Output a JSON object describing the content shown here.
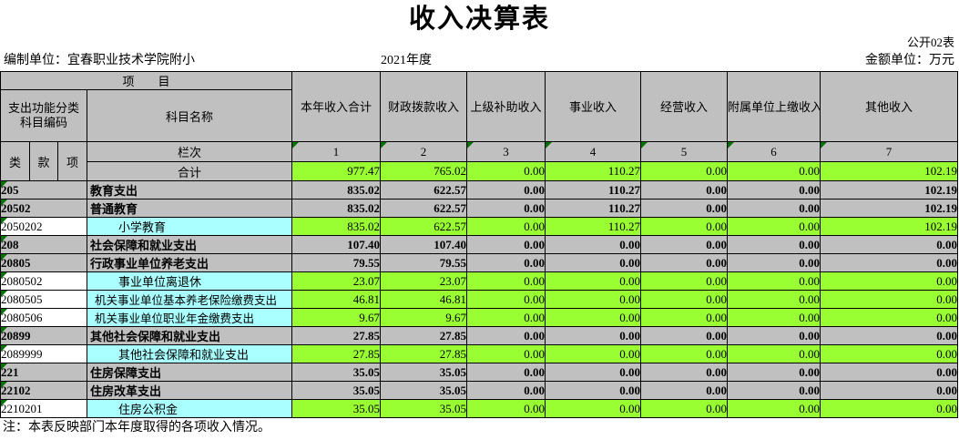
{
  "title": "收入决算表",
  "header": {
    "sheet_no": "公开02表",
    "prepare_unit": "编制单位：宜春职业技术学院附小",
    "year": "2021年度",
    "amount_unit": "金额单位：万元"
  },
  "table": {
    "project_header": "项　　目",
    "code_header_line1": "支出功能分类",
    "code_header_line2": "科目编码",
    "name_header": "科目名称",
    "col_headers": [
      "本年收入合计",
      "财政拨款收入",
      "上级补助收入",
      "事业收入",
      "经营收入",
      "附属单位上缴收入",
      "其他收入"
    ],
    "sub_headers": {
      "lei": "类",
      "kuan": "款",
      "xiang": "项",
      "lanci": "栏次",
      "heji": "合计"
    },
    "col_numbers": [
      "1",
      "2",
      "3",
      "4",
      "5",
      "6",
      "7"
    ],
    "total_values": [
      "977.47",
      "765.02",
      "0.00",
      "110.27",
      "0.00",
      "0.00",
      "102.19"
    ],
    "rows": [
      {
        "code": "205",
        "name": "教育支出",
        "level": "summary",
        "values": [
          "835.02",
          "622.57",
          "0.00",
          "110.27",
          "0.00",
          "0.00",
          "102.19"
        ]
      },
      {
        "code": "20502",
        "name": "普通教育",
        "level": "summary",
        "values": [
          "835.02",
          "622.57",
          "0.00",
          "110.27",
          "0.00",
          "0.00",
          "102.19"
        ]
      },
      {
        "code": "2050202",
        "name": "小学教育",
        "level": "detail",
        "values": [
          "835.02",
          "622.57",
          "0.00",
          "110.27",
          "0.00",
          "0.00",
          "102.19"
        ]
      },
      {
        "code": "208",
        "name": "社会保障和就业支出",
        "level": "summary",
        "values": [
          "107.40",
          "107.40",
          "0.00",
          "0.00",
          "0.00",
          "0.00",
          "0.00"
        ]
      },
      {
        "code": "20805",
        "name": "行政事业单位养老支出",
        "level": "summary",
        "values": [
          "79.55",
          "79.55",
          "0.00",
          "0.00",
          "0.00",
          "0.00",
          "0.00"
        ]
      },
      {
        "code": "2080502",
        "name": "事业单位离退休",
        "level": "detail",
        "values": [
          "23.07",
          "23.07",
          "0.00",
          "0.00",
          "0.00",
          "0.00",
          "0.00"
        ]
      },
      {
        "code": "2080505",
        "name": "机关事业单位基本养老保险缴费支出",
        "level": "detail",
        "values": [
          "46.81",
          "46.81",
          "0.00",
          "0.00",
          "0.00",
          "0.00",
          "0.00"
        ]
      },
      {
        "code": "2080506",
        "name": "机关事业单位职业年金缴费支出",
        "level": "detail",
        "values": [
          "9.67",
          "9.67",
          "0.00",
          "0.00",
          "0.00",
          "0.00",
          "0.00"
        ]
      },
      {
        "code": "20899",
        "name": "其他社会保障和就业支出",
        "level": "summary",
        "values": [
          "27.85",
          "27.85",
          "0.00",
          "0.00",
          "0.00",
          "0.00",
          "0.00"
        ]
      },
      {
        "code": "2089999",
        "name": "其他社会保障和就业支出",
        "level": "detail",
        "values": [
          "27.85",
          "27.85",
          "0.00",
          "0.00",
          "0.00",
          "0.00",
          "0.00"
        ]
      },
      {
        "code": "221",
        "name": "住房保障支出",
        "level": "summary",
        "values": [
          "35.05",
          "35.05",
          "0.00",
          "0.00",
          "0.00",
          "0.00",
          "0.00"
        ]
      },
      {
        "code": "22102",
        "name": "住房改革支出",
        "level": "summary",
        "values": [
          "35.05",
          "35.05",
          "0.00",
          "0.00",
          "0.00",
          "0.00",
          "0.00"
        ]
      },
      {
        "code": "2210201",
        "name": "住房公积金",
        "level": "detail",
        "values": [
          "35.05",
          "35.05",
          "0.00",
          "0.00",
          "0.00",
          "0.00",
          "0.00"
        ]
      }
    ]
  },
  "footnote": "注：本表反映部门本年度取得的各项收入情况。",
  "colors": {
    "gray": "#C0C0C0",
    "green": "#99FF33",
    "cyan": "#AAFFFF",
    "tri": "#007000",
    "border": "#000000"
  }
}
